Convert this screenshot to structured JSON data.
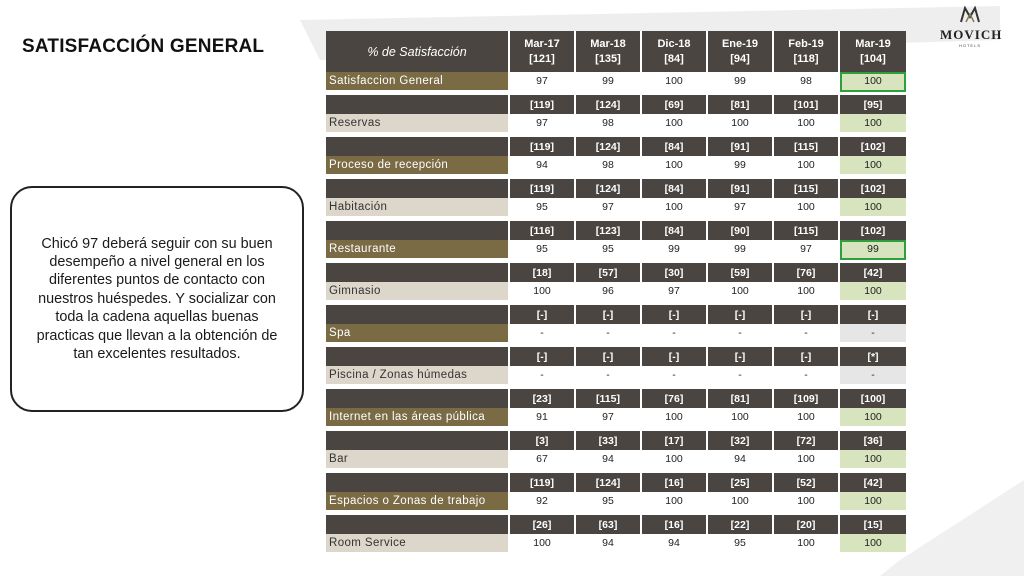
{
  "title": "SATISFACCIÓN GENERAL",
  "logo": {
    "name": "MOVICH",
    "subtitle": "HOTELS",
    "icon": "movich-monogram-icon"
  },
  "note": "Chicó 97 deberá seguir con su buen desempeño a nivel general en los diferentes puntos de contacto con nuestros huéspedes. Y socializar con toda la cadena aquellas buenas practicas que llevan a la obtención de tan excelentes resultados.",
  "colors": {
    "header_bg": "#4a4540",
    "category_dark": "#7a6b45",
    "category_light": "#ddd6ca",
    "last_col": "#d7e4bd",
    "highlight": "#2f9e3c"
  },
  "table": {
    "header_label": "% de Satisfacción",
    "columns": [
      {
        "period": "Mar-17",
        "n": "[121]"
      },
      {
        "period": "Mar-18",
        "n": "[135]"
      },
      {
        "period": "Dic-18",
        "n": "[84]"
      },
      {
        "period": "Ene-19",
        "n": "[94]"
      },
      {
        "period": "Feb-19",
        "n": "[118]"
      },
      {
        "period": "Mar-19",
        "n": "[104]"
      }
    ],
    "rows": [
      {
        "category": "Satisfaccion General",
        "counts": [],
        "values": [
          "97",
          "99",
          "100",
          "99",
          "98",
          "100"
        ],
        "highlight": true
      },
      {
        "category": "Reservas",
        "counts": [
          "[119]",
          "[124]",
          "[69]",
          "[81]",
          "[101]",
          "[95]"
        ],
        "values": [
          "97",
          "98",
          "100",
          "100",
          "100",
          "100"
        ]
      },
      {
        "category": "Proceso de recepción",
        "counts": [
          "[119]",
          "[124]",
          "[84]",
          "[91]",
          "[115]",
          "[102]"
        ],
        "values": [
          "94",
          "98",
          "100",
          "99",
          "100",
          "100"
        ]
      },
      {
        "category": "Habitación",
        "counts": [
          "[119]",
          "[124]",
          "[84]",
          "[91]",
          "[115]",
          "[102]"
        ],
        "values": [
          "95",
          "97",
          "100",
          "97",
          "100",
          "100"
        ]
      },
      {
        "category": "Restaurante",
        "counts": [
          "[116]",
          "[123]",
          "[84]",
          "[90]",
          "[115]",
          "[102]"
        ],
        "values": [
          "95",
          "95",
          "99",
          "99",
          "97",
          "99"
        ],
        "highlight": true
      },
      {
        "category": "Gimnasio",
        "counts": [
          "[18]",
          "[57]",
          "[30]",
          "[59]",
          "[76]",
          "[42]"
        ],
        "values": [
          "100",
          "96",
          "97",
          "100",
          "100",
          "100"
        ]
      },
      {
        "category": "Spa",
        "counts": [
          "[-]",
          "[-]",
          "[-]",
          "[-]",
          "[-]",
          "[-]"
        ],
        "values": [
          "-",
          "-",
          "-",
          "-",
          "-",
          "-"
        ],
        "grey": true
      },
      {
        "category": "Piscina / Zonas húmedas",
        "counts": [
          "[-]",
          "[-]",
          "[-]",
          "[-]",
          "[-]",
          "[*]"
        ],
        "values": [
          "-",
          "-",
          "-",
          "-",
          "-",
          "-"
        ],
        "grey": true
      },
      {
        "category": "Internet en las áreas pública",
        "counts": [
          "[23]",
          "[115]",
          "[76]",
          "[81]",
          "[109]",
          "[100]"
        ],
        "values": [
          "91",
          "97",
          "100",
          "100",
          "100",
          "100"
        ]
      },
      {
        "category": "Bar",
        "counts": [
          "[3]",
          "[33]",
          "[17]",
          "[32]",
          "[72]",
          "[36]"
        ],
        "values": [
          "67",
          "94",
          "100",
          "94",
          "100",
          "100"
        ]
      },
      {
        "category": "Espacios o Zonas de trabajo",
        "counts": [
          "[119]",
          "[124]",
          "[16]",
          "[25]",
          "[52]",
          "[42]"
        ],
        "values": [
          "92",
          "95",
          "100",
          "100",
          "100",
          "100"
        ]
      },
      {
        "category": "Room Service",
        "counts": [
          "[26]",
          "[63]",
          "[16]",
          "[22]",
          "[20]",
          "[15]"
        ],
        "values": [
          "100",
          "94",
          "94",
          "95",
          "100",
          "100"
        ]
      }
    ]
  }
}
